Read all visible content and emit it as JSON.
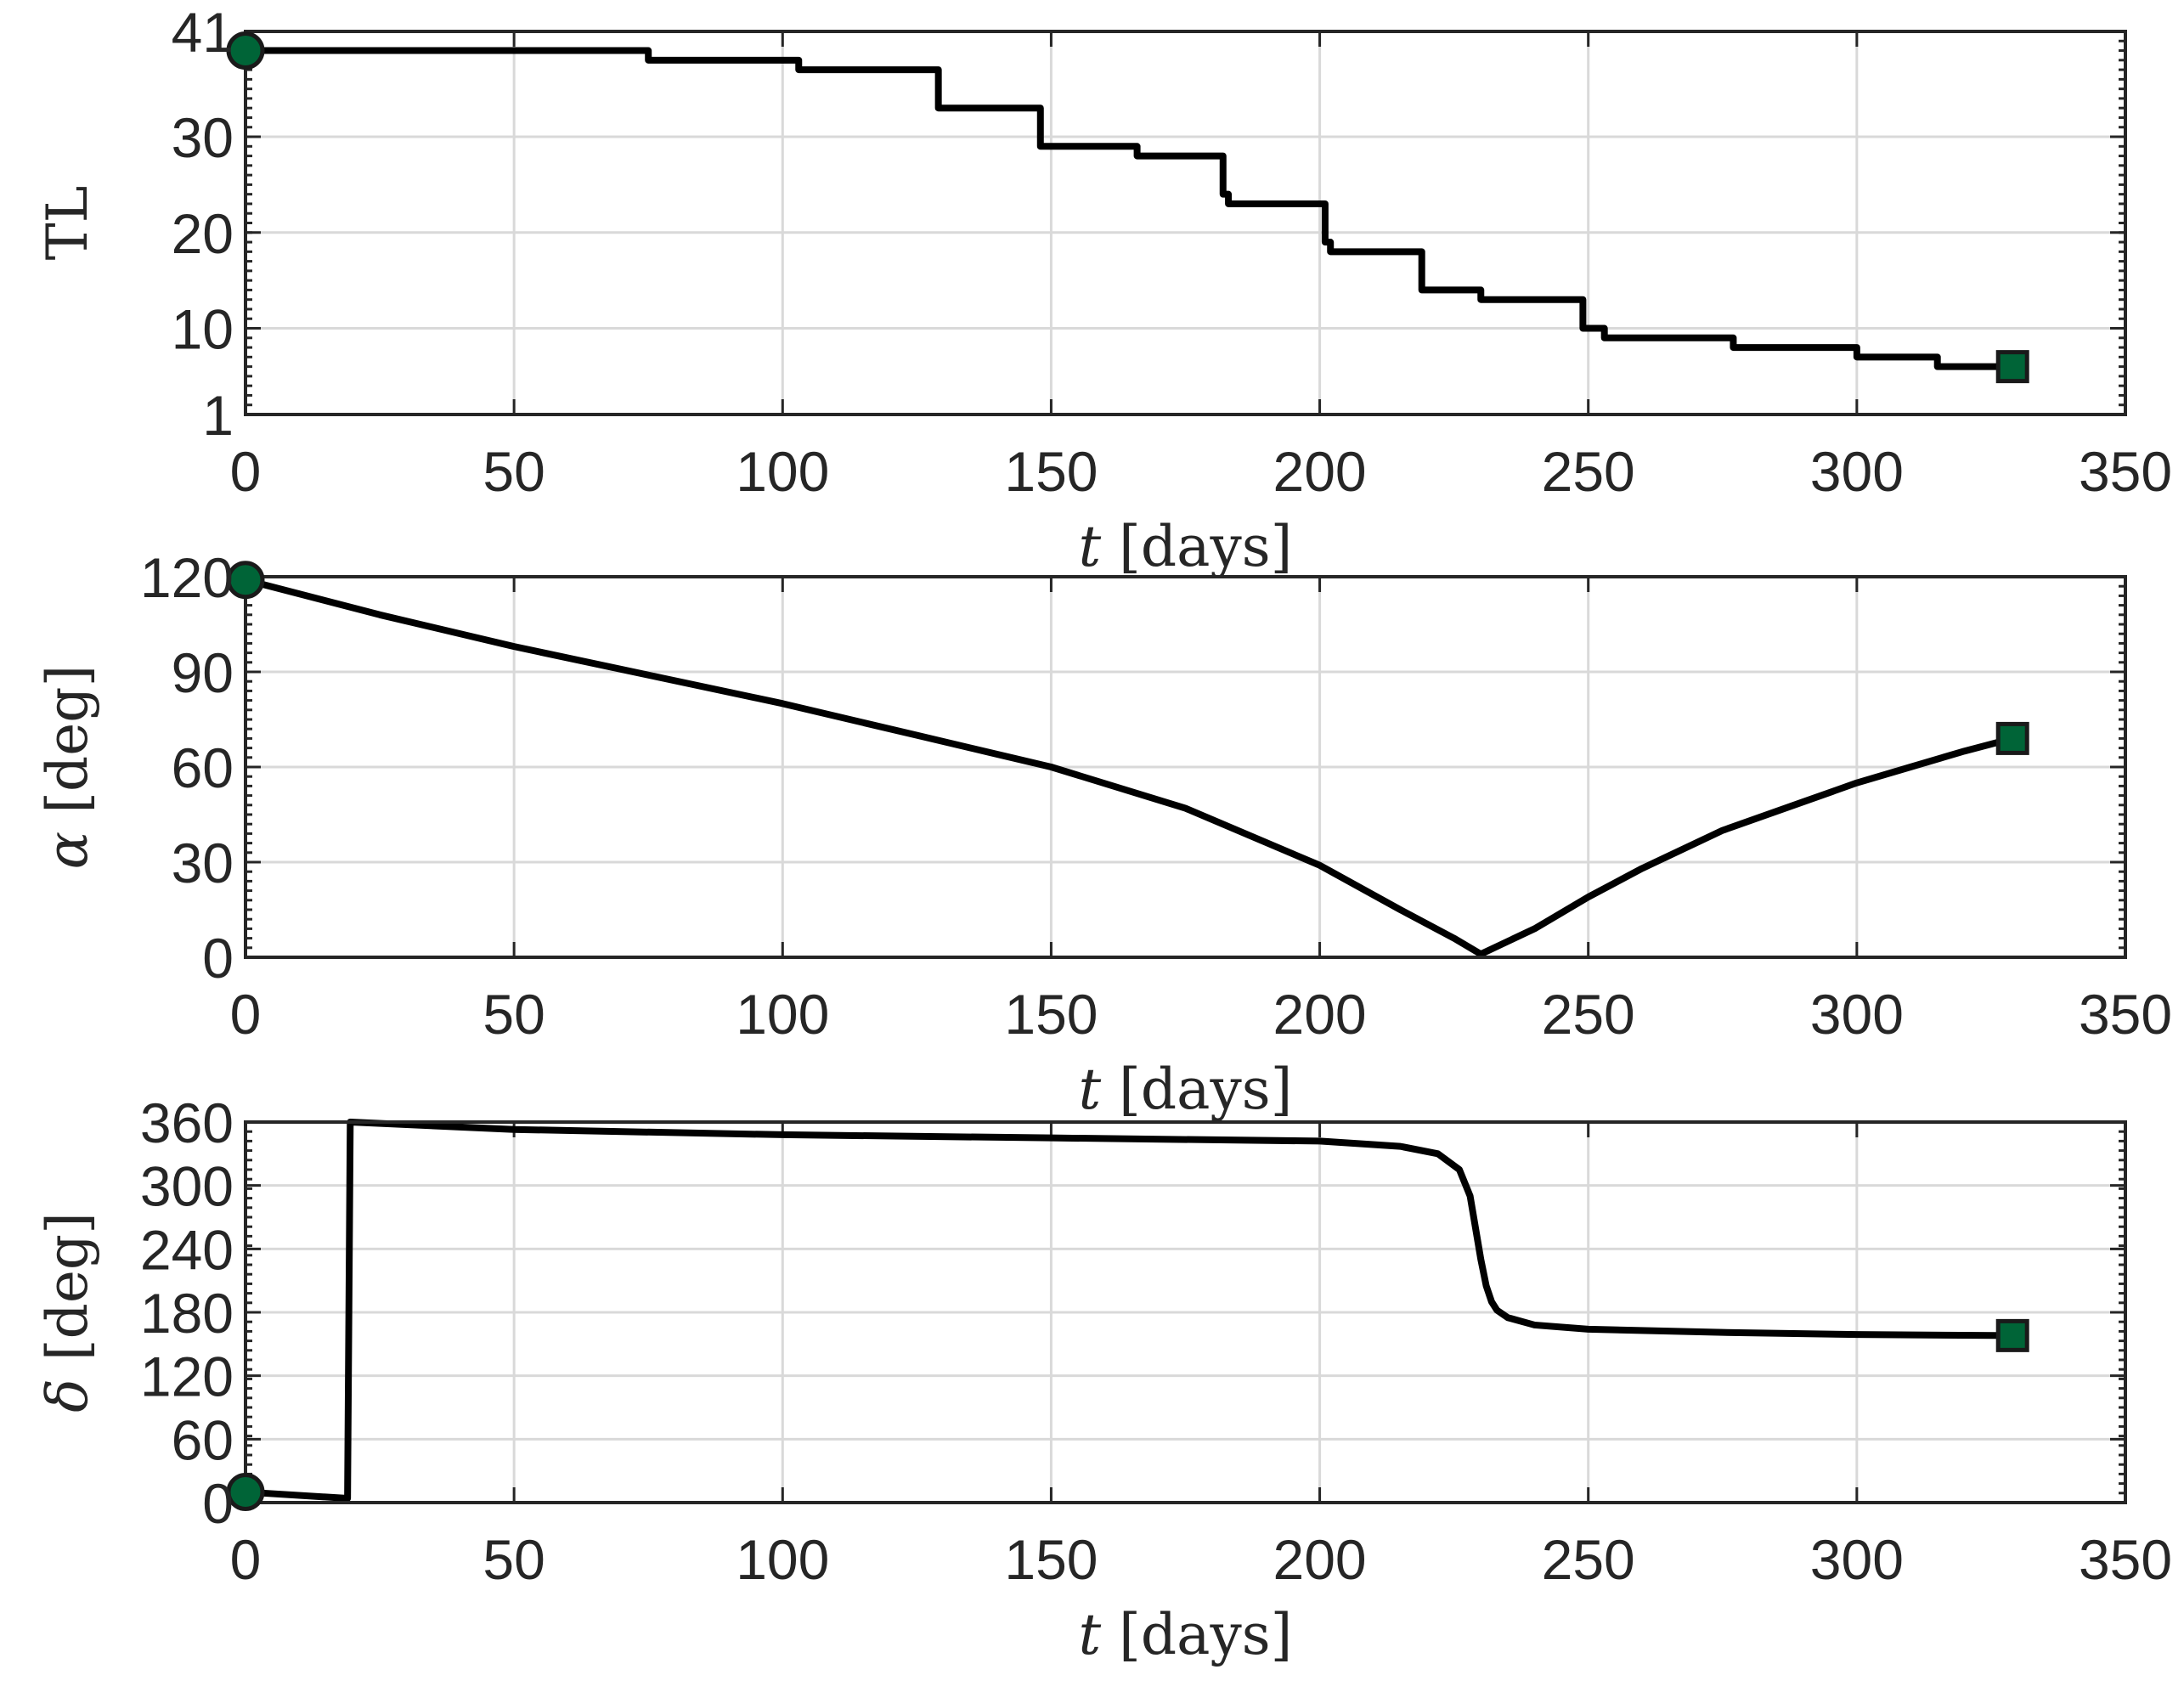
{
  "chart_data": [
    {
      "type": "line",
      "xlabel_var": "t",
      "xlabel_unit": "[days]",
      "ylabel_var": "TL",
      "ylabel_unit": "",
      "ylabel_italic": false,
      "xlim": [
        0,
        350
      ],
      "ylim": [
        1,
        41
      ],
      "xticks": [
        0,
        50,
        100,
        150,
        200,
        250,
        300,
        350
      ],
      "yticks": [
        1,
        10,
        20,
        30,
        41
      ],
      "grid": true,
      "step": true,
      "series": [
        {
          "x": [
            0,
            75,
            103,
            129,
            148,
            166,
            182,
            183,
            201,
            202,
            219,
            230,
            249,
            253,
            277,
            300,
            315,
            329
          ],
          "values": [
            39,
            38,
            37,
            33,
            29,
            28,
            24,
            23,
            19,
            18,
            14,
            13,
            10,
            9,
            8,
            7,
            6,
            6
          ]
        }
      ],
      "start_marker": {
        "shape": "circle",
        "x": 0,
        "y": 39
      },
      "end_marker": {
        "shape": "square",
        "x": 329,
        "y": 6
      }
    },
    {
      "type": "line",
      "xlabel_var": "t",
      "xlabel_unit": "[days]",
      "ylabel_var": "α",
      "ylabel_unit": "[deg]",
      "ylabel_italic": true,
      "xlim": [
        0,
        350
      ],
      "ylim": [
        0,
        120
      ],
      "xticks": [
        0,
        50,
        100,
        150,
        200,
        250,
        300,
        350
      ],
      "yticks": [
        0,
        30,
        60,
        90,
        120
      ],
      "grid": true,
      "step": false,
      "series": [
        {
          "x": [
            0,
            25,
            50,
            75,
            100,
            125,
            150,
            175,
            200,
            215,
            225,
            230,
            240,
            250,
            260,
            275,
            290,
            300,
            310,
            320,
            329
          ],
          "values": [
            119,
            108,
            98,
            89,
            80,
            70,
            60,
            47,
            29,
            15,
            6,
            1,
            9,
            19,
            28,
            40,
            49,
            55,
            60,
            65,
            69
          ]
        }
      ],
      "start_marker": {
        "shape": "circle",
        "x": 0,
        "y": 119
      },
      "end_marker": {
        "shape": "square",
        "x": 329,
        "y": 69
      }
    },
    {
      "type": "line",
      "xlabel_var": "t",
      "xlabel_unit": "[days]",
      "ylabel_var": "δ",
      "ylabel_unit": "[deg]",
      "ylabel_italic": true,
      "xlim": [
        0,
        350
      ],
      "ylim": [
        0,
        360
      ],
      "xticks": [
        0,
        50,
        100,
        150,
        200,
        250,
        300,
        350
      ],
      "yticks": [
        0,
        60,
        120,
        180,
        240,
        300,
        360
      ],
      "grid": true,
      "step": false,
      "series": [
        {
          "x": [
            0,
            19,
            19.5,
            50,
            100,
            150,
            200,
            215,
            222,
            226,
            228,
            229,
            230,
            231,
            232,
            233,
            235,
            240,
            250,
            275,
            300,
            329
          ],
          "values": [
            10,
            4,
            360,
            353,
            348,
            345,
            342,
            337,
            330,
            315,
            290,
            260,
            230,
            205,
            190,
            182,
            175,
            168,
            164,
            161,
            159,
            158
          ]
        }
      ],
      "start_marker": {
        "shape": "circle",
        "x": 0,
        "y": 10
      },
      "end_marker": {
        "shape": "square",
        "x": 329,
        "y": 158
      }
    }
  ],
  "colors": {
    "line": "#000000",
    "marker_fill": "#006437",
    "marker_edge": "#1a1a1a",
    "grid": "#d9d9d9",
    "axes": "#262626"
  }
}
